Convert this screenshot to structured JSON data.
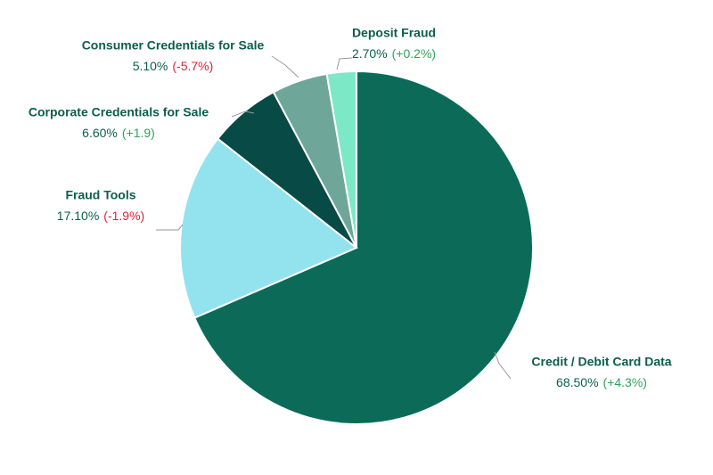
{
  "chart_data": {
    "type": "pie",
    "categories": [
      "Credit / Debit Card Data",
      "Fraud Tools",
      "Corporate Credentials for Sale",
      "Consumer Credentials for Sale",
      "Deposit Fraud"
    ],
    "values": [
      68.5,
      17.1,
      6.6,
      5.1,
      2.7
    ],
    "value_labels": [
      "68.50%",
      "17.10%",
      "6.60%",
      "5.10%",
      "2.70%"
    ],
    "change_labels": [
      "(+4.3%)",
      "(-1.9%)",
      "(+1.9)",
      "(-5.7%)",
      "(+0.2%)"
    ],
    "change_colors": [
      "#2fa35a",
      "#d9263a",
      "#2fa35a",
      "#d9263a",
      "#2fa35a"
    ],
    "colors": [
      "#0b6b58",
      "#93e3ef",
      "#084a45",
      "#6ea79a",
      "#7de8c6"
    ]
  }
}
